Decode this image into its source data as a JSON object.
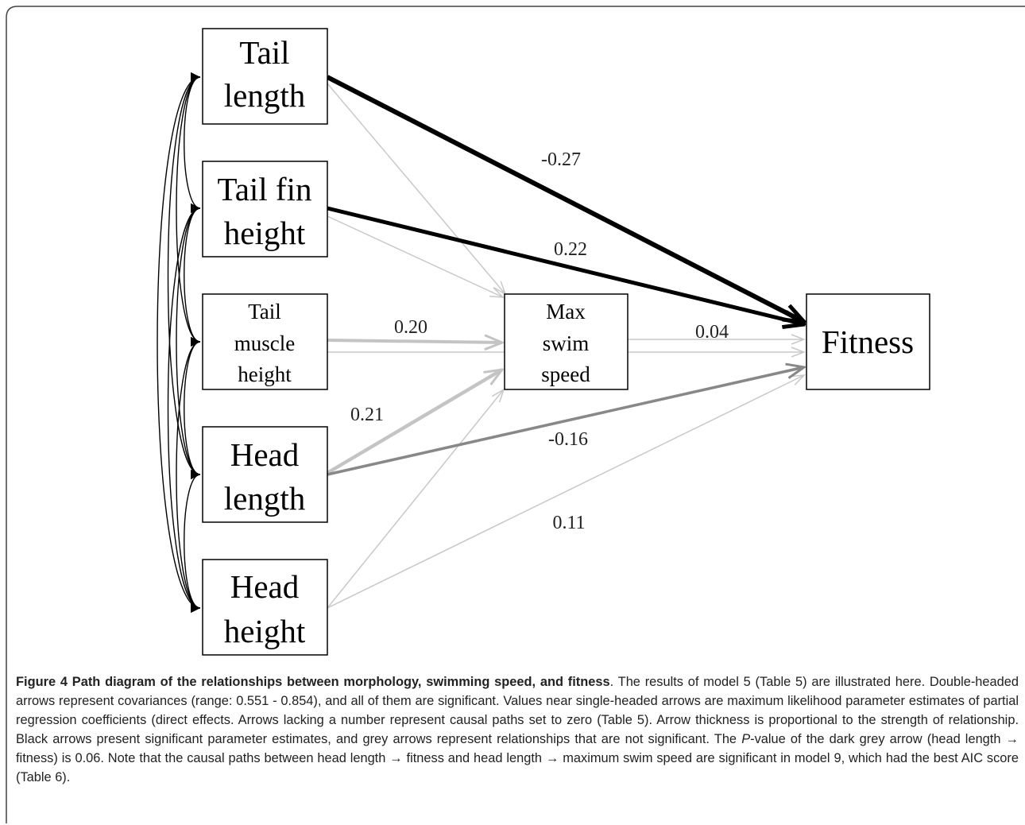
{
  "nodes": [
    {
      "lines": [
        "Tail",
        "length"
      ]
    },
    {
      "lines": [
        "Tail fin",
        "height"
      ]
    },
    {
      "lines": [
        "Tail",
        "muscle",
        "height"
      ]
    },
    {
      "lines": [
        "Head",
        "length"
      ]
    },
    {
      "lines": [
        "Head",
        "height"
      ]
    },
    {
      "lines": [
        "Max",
        "swim",
        "speed"
      ]
    },
    {
      "lines": [
        "Fitness"
      ]
    }
  ],
  "edge_labels": [
    "-0.27",
    "0.22",
    "0.20",
    "0.04",
    "0.21",
    "-0.16",
    "0.11"
  ],
  "caption": {
    "title": "Figure 4 Path diagram of the relationships between morphology, swimming speed, and fitness",
    "text_1": ". The results of model 5 (Table 5) are illustrated here. Double-headed arrows represent covariances (range: 0.551 - 0.854), and all of them are significant. Values near single-headed arrows are maximum likelihood parameter estimates of partial regression coefficients (direct effects. Arrows lacking a number represent causal paths set to zero (Table 5). Arrow thickness is proportional to the strength of relationship. Black arrows present significant parameter estimates, and grey arrows represent relationships that are not significant. The ",
    "italic": "P",
    "text_2": "-value of the dark grey arrow (head length → fitness) is 0.06. Note that the causal paths between head length → fitness and head length → maximum swim speed are significant in model 9, which had the best AIC score (Table 6)."
  }
}
